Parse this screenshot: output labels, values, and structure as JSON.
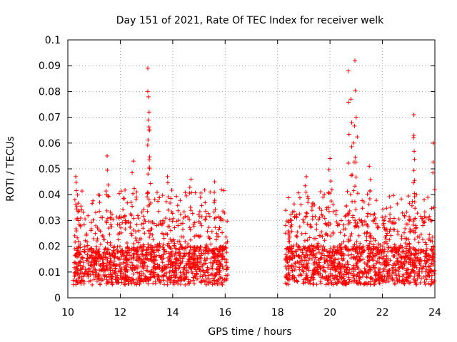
{
  "chart_data": {
    "type": "scatter",
    "title": "Day 151 of 2021, Rate Of TEC Index for receiver welk",
    "xlabel": "GPS time / hours",
    "ylabel": "ROTI / TECUs",
    "xlim": [
      10,
      24
    ],
    "ylim": [
      0,
      0.1
    ],
    "xticks": [
      "10",
      "12",
      "14",
      "16",
      "18",
      "20",
      "22",
      "24"
    ],
    "yticks": [
      "0",
      "0.01",
      "0.02",
      "0.03",
      "0.04",
      "0.05",
      "0.06",
      "0.07",
      "0.08",
      "0.09",
      "0.1"
    ],
    "grid": true,
    "marker": "plus",
    "color": "#ff0000",
    "series": [
      {
        "segments": [
          {
            "x_start": 10.2,
            "x_end": 16.1
          },
          {
            "x_start": 18.3,
            "x_end": 24.0
          }
        ],
        "typical_range": [
          0.005,
          0.02
        ],
        "peaks": [
          {
            "x": 10.3,
            "y": 0.047
          },
          {
            "x": 11.5,
            "y": 0.055
          },
          {
            "x": 12.5,
            "y": 0.053
          },
          {
            "x": 13.05,
            "y": 0.089
          },
          {
            "x": 13.05,
            "y": 0.08
          },
          {
            "x": 13.1,
            "y": 0.072
          },
          {
            "x": 13.1,
            "y": 0.065
          },
          {
            "x": 13.8,
            "y": 0.047
          },
          {
            "x": 14.7,
            "y": 0.046
          },
          {
            "x": 15.6,
            "y": 0.045
          },
          {
            "x": 19.1,
            "y": 0.047
          },
          {
            "x": 20.0,
            "y": 0.054
          },
          {
            "x": 20.7,
            "y": 0.088
          },
          {
            "x": 20.95,
            "y": 0.092
          },
          {
            "x": 20.8,
            "y": 0.077
          },
          {
            "x": 21.0,
            "y": 0.07
          },
          {
            "x": 20.9,
            "y": 0.06
          },
          {
            "x": 21.5,
            "y": 0.051
          },
          {
            "x": 23.2,
            "y": 0.071
          },
          {
            "x": 23.2,
            "y": 0.063
          },
          {
            "x": 23.95,
            "y": 0.06
          }
        ]
      }
    ]
  }
}
